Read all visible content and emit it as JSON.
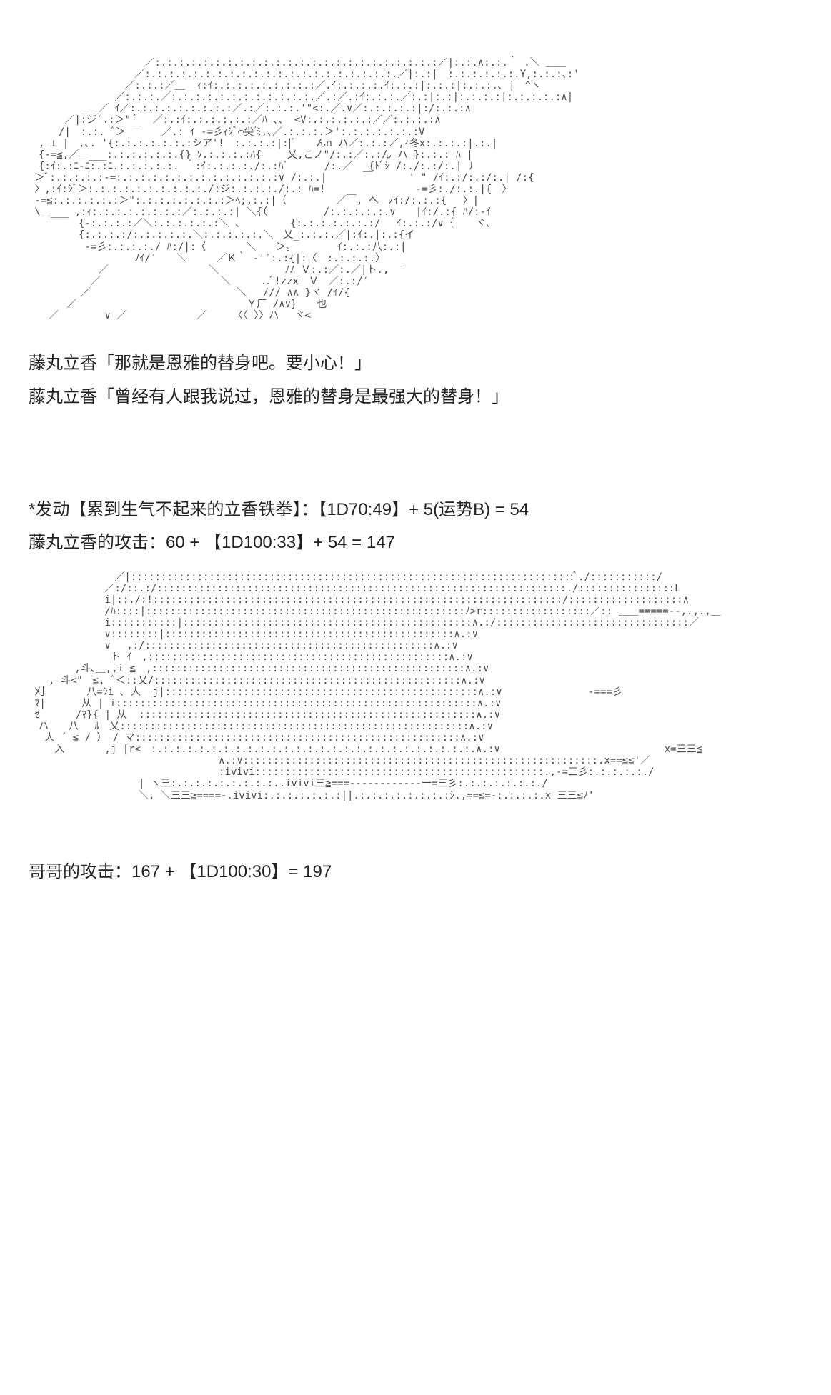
{
  "ascii_art_1": "　　　　　　　　　　　 ／:.:.:.:.:.:.:.:.:.:.:.:.:.:.:.:.:.:.:.:.:.:.:.:／|:.:.∧:.:.｀ .＼ ＿＿\n　　　　　　　　　　 ／:.:.:.:.:.:.:.:.:.:.:.:.:.:.:.:.:.:.:.:.:.／|:.:|　:.:.:.:.:.:.Y,:.:.:､:'\n　　　　　　　　　 ／:.:.:／＿__ｨ:ｲ:.:.:.:.:.:.:.:.:／.ｲ:.:.:.:.ｲ:.:.:|:.:.:|:.:.:.､ |　^ヽ\n　　　　　　　　 ／:.:.:.／:.:.:.:.:.:.:.:.:.:.:.:.／.:／.:ｲ:.:.:.／:.:|:.:|:.:.:.:|:.:.:.:.:∧|\n　　 　 　_ _／ ｲ／:.:.:.:.:.:.:.:.:／.:／:.:.:.'\"<:.／.∨／:.:.:.:.:|:/:.:.:∧\n　　　 ／|:ジ′.:＞\"´ ￣／:.:ｲ:.:.:.:.:.:／ﾊ ､、 <V:.:.:.:.:.:／／:.:.:.:∧\n　　　/|　:.:. ﾞ＞ ￣　　／.: ｲ -=彡ｨｼﾞ⌒尖 ゙ﾐ,､／.:.:.:.＞':.:.:.:.:.:.:V\n　, ⊥_|　,､. '{:.:.:.:.:.:.:シア'!　:.:.:.:|:|ﾞ　　ん∩ ハ／:.:.:／,ｨ冬x:.:.:.:|.:.|\n　{-=≦,／＿___:.:.:.:.:.:.{} ｿ.:.:.:.:ﾊ{　　 乂,こノ\"/:.:／:.:ん ハ }:.:.: ﾊ |\n　{:ｲ:.:ﾆ‐ﾆ:.:ﾆ.:.:.:.:.:. ＾:ｲ:.:.:.:./:.:ﾊﾞ　　　 /:.／　 {ﾄﾞｼ /:./:.:/:.| ﾘ\n ＞ﾞ:.:.:.:.:-=:.:.:.:.:.:.:.:.:.:.:.:.:.:∨ /:.:.|　　　 ￣ 　　　' \" /ｲ:.:/:.:/:.| /:{\n 〉,:ｲ:ｼﾞ＞:.:.:.:.:.:.:.:.:.:./:ジ:.:.:.:./:.: ﾊ=!　　　　　　　　　-=彡:./:.:.|{　〉\n -=≦:.:.:.:.:.:＞\":.:.:.:.:.:.:.:＞ﾍ;,:.:|（　　　　　／￣, へ　ﾉｲ:/:.:.:{　 〉|\n \\＿___ ,:ｨ:.:.:.:.:.:.:.:／:.:.:.:| ＼{（　　　　　 /:.:.:.:.:.∨　　|ｲ:/.:{ ﾊ/:-ｲ\n　　　　　{-:.:.:.:／＼:.:.:.:.:.:＼ 、　　　　　{:.:.:.:.:.:.:/ 　ｲ:.:.:/∨｛ 　 ヾ、\n　　　　　{:.:.:.:/:.:.:.:.:.＼:.:.:.:.:.＼　乂_:.:.:.／|:ｲ:.|:.:{イ\n　　　　　 -=彡:.:.:.:./ ﾊ:/|:〈　　　　＼　　＞。　　　　 ｲ:.:.:八:.:|\n　　　　　　　　　　 ﾉｲ/′　　＼　　　／Ｋ｀ -'′:.:{|:〈　:.:.:.:.〉\n　　　　　　　／　　　　　　　　　　＼　　　　　　 ﾉﾉ Ｖ:.:／:.／|ト.,　′\n　　　　 　 ／　　　　　　　　　　　　＼　　　..ﾞ!zzx　Ｖ　／:.:/′\n　　　 　 ／　　　　　　　　　　　　　　 ＼　 /// ∧∧ }ヾ /ｲ/{\n 　 　 ／　　　　　　　　　　　　　　　　　Ｙ厂 /∧∨}　　也\n　　／　　　　 ∨ ／　　　　　　　／　　 〈〈 〉〉ハ 　ヾ<",
  "dialogue_1": {
    "speaker": "藤丸立香",
    "text": "「那就是恩雅的替身吧。要小心！」"
  },
  "dialogue_2": {
    "speaker": "藤丸立香",
    "text": "「曾经有人跟我说过，恩雅的替身是最强大的替身！」"
  },
  "skill_activation": "*发动【累到生气不起来的立香铁拳】：【1D70:49】+ 5(运势B) = 54",
  "ritsuka_attack": "藤丸立香的攻击：60 + 【1D100:33】+ 54 = 147",
  "ascii_art_2": "　　　　　　　　 ／|::::::::::::::::::::::::::::::::::::::::::::::::::::::::::::::::::::::::::ﾞ./:::::::::::/\n　　　　　　　 ／:/::.:/::::::::::::::::::::::::::::::::::::::::::::::::::::::::::::::::::::./::::::::::::::::L\n　　　　　　　 i|::./:!::::::::::::::::::::::::::::::::::::::::::::::::::::::::::::::::::::/:::::::::::::::::::∧\n　　　　　　　 /ﾊ::::|:::::::::::::::::::::::::::::::::::::::::::::::::::::ﾉ>r::::::::::::::::::／:: ＿＿=====--,.,.,＿\n　　　　　　　 i:::::::::::|::::::::::::::::::::::::::::::::::::::::::::::::∧.:/::::::::::::::::::::::::::::::::／\n　　　　　　　 ∨::::::::|::::::::::::::::::::::::::::::::::::::::::::::::∧.:∨\n　　　　　　 　∨　 ,:/::::::::::::::::::::::::::::::::::::::::::::::::∧.:∨\n　　　　　　 　 ト ｲ　,::::::::::::::::::::::::::::::::::::::::::::::::::∧.:∨\n　　　　 ,斗､＿,,i ≦　,::::::::::::::::::::::::::::::::::::::::::::::::::::∧.:∨\n　　, 斗<\"　≦, ﾞ＜::乂/:::::::::::::::::::::::::::::::::::::::::::::::::::∧.:∨\n 刈　 　 　八=ｼi ､ 人  j|::::::::::::::::::::::::::::::::::::::::::::::::::::∧.:∨　　　　　　　　 -===彡\n ﾏ|　　　 从 | i::::::::::::::::::::::::::::::::::::::::::::::::::::::::::::∧.:∨\n ｾ　　　 /ﾏ}{ | 从  ::::::::::::::::::::::::::::::::::::::::::::::::::::::::∧.:∨\n　ハ　　八　 ﾙ　乂::::::::::::::::::::::::::::::::::::::::::::::::::::::::::∧.:∨\n　 人 ´ ≦ / ） / マ::::::::::::::::::::::::::::::::::::::::::::::::::::::∧.:∨\n　　 入　　　　,j |r<　:.:.:.:.:.:.:.:.:.:.:.:.:.:.:.:.:.:.:.:.:.:.:.:.:.:.:.∧.:∨　　　 　 　 　 　 　 　 　 　 x=三三≦\n　　　　　　　　　　　　　　　　　　　∧.:∨:::::::::::::::::::::::::::::::::::::::::::::::::::::::::::.x==≦≦'／\n　　　　　　　　　　　　　　　　　　　:ivivi::::::::::::::::::::::::::::::::::::::::::::::::.,-=三彡:.:.:.:.:./\n　　　　　　　　　　　| ヽ三:.:.:.:.:.:.:.:.:..ivivi三≧===------------一=三彡:.:.:.:.:.:.:./\n　　　　　　　　　　　＼, ＼三三≧====-.ivivi:.:.:.:.:.:.:||.:.:.:.:.:.:.:.:ｼ.,==≦=-:.:.:.:.x 三三≦ﾉ'",
  "brother_attack": "哥哥的攻击：167 + 【1D100:30】= 197"
}
